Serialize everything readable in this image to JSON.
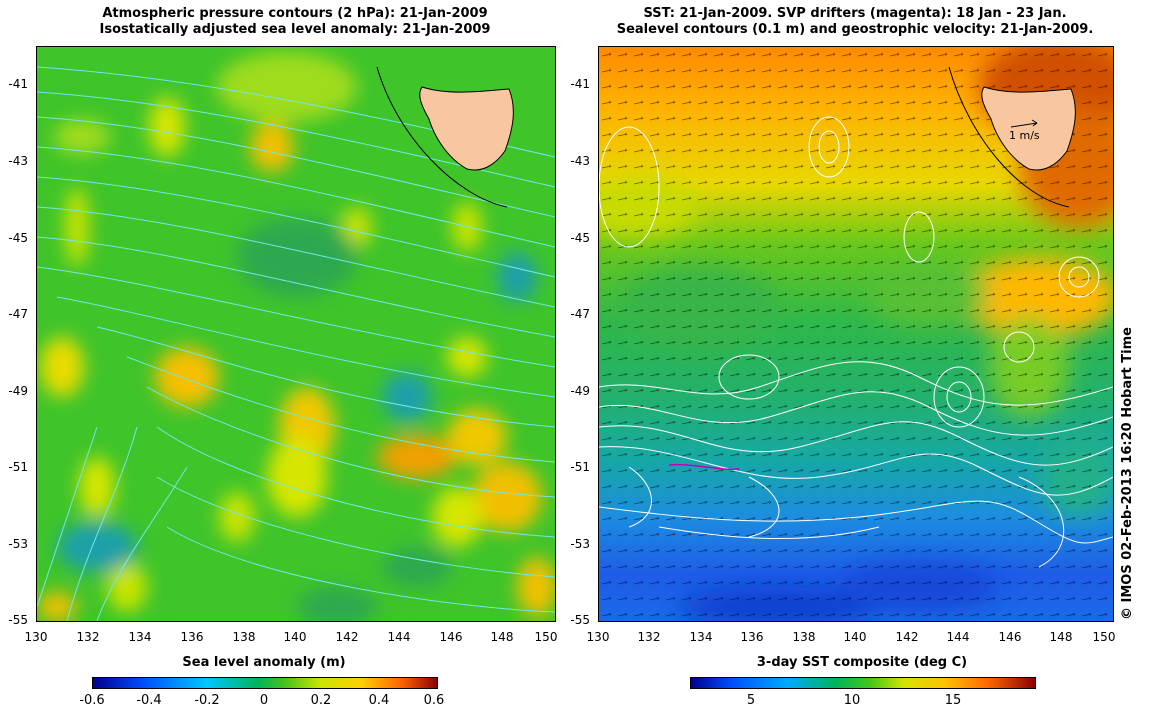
{
  "left_panel": {
    "title_line1": "Atmospheric pressure contours (2 hPa): 21-Jan-2009",
    "title_line2": "Isostatically adjusted sea level anomaly: 21-Jan-2009",
    "colorbar_title": "Sea level anomaly (m)",
    "colorbar_ticks": [
      "-0.6",
      "-0.4",
      "-0.2",
      "0",
      "0.2",
      "0.4",
      "0.6"
    ]
  },
  "right_panel": {
    "title_line1": "SST: 21-Jan-2009. SVP drifters (magenta): 18 Jan - 23 Jan.",
    "title_line2": "Sealevel contours (0.1 m) and geostrophic velocity: 21-Jan-2009.",
    "colorbar_title": "3-day SST composite (deg C)",
    "colorbar_ticks": [
      "5",
      "10",
      "15"
    ],
    "velocity_scale_label": "1 m/s"
  },
  "axes": {
    "x_ticks": [
      "130",
      "132",
      "134",
      "136",
      "138",
      "140",
      "142",
      "144",
      "146",
      "148",
      "150"
    ],
    "y_ticks": [
      "-41",
      "-43",
      "-45",
      "-47",
      "-49",
      "-51",
      "-53",
      "-55"
    ]
  },
  "credit": "© IMOS 02-Feb-2013 16:20 Hobart Time",
  "colors": {
    "land": "#f8c7a0",
    "pressure_contour": "#6fe8e6",
    "sealevel_contour": "#ffffff",
    "drifter": "#c000c0"
  },
  "chart_data": [
    {
      "type": "heatmap",
      "title": "Atmospheric pressure contours (2 hPa): 21-Jan-2009 / Isostatically adjusted sea level anomaly: 21-Jan-2009",
      "xlim": [
        130,
        150
      ],
      "ylim": [
        -55,
        -40
      ],
      "colorbar_label": "Sea level anomaly (m)",
      "colorbar_range": [
        -0.6,
        0.6
      ]
    },
    {
      "type": "heatmap",
      "title": "SST: 21-Jan-2009. SVP drifters (magenta): 18 Jan - 23 Jan. / Sealevel contours (0.1 m) and geostrophic velocity: 21-Jan-2009.",
      "xlim": [
        130,
        150
      ],
      "ylim": [
        -55,
        -40
      ],
      "colorbar_label": "3-day SST composite (deg C)",
      "colorbar_range": [
        2,
        19
      ]
    }
  ]
}
